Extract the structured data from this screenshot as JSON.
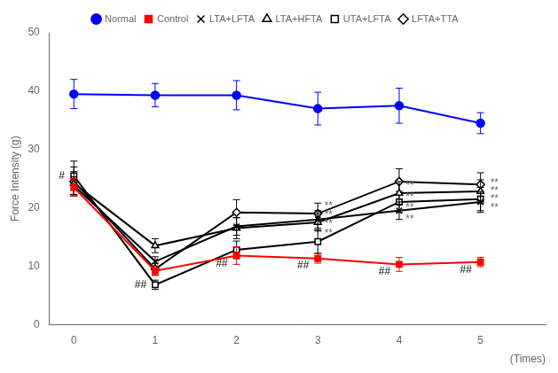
{
  "chart_data": {
    "type": "line",
    "ylabel": "Force Intensity (g)",
    "xlabel": "(Times)",
    "x": [
      0,
      1,
      2,
      3,
      4,
      5
    ],
    "xlim": [
      -0.3,
      5.8
    ],
    "xticks": [
      0,
      1,
      2,
      3,
      4,
      5
    ],
    "ylim": [
      0,
      50
    ],
    "yticks": [
      0,
      10,
      20,
      30,
      40,
      50
    ],
    "grid": false,
    "legend": "top",
    "series": [
      {
        "name": "Normal",
        "color": "#0000ff",
        "marker": "circle",
        "line_style": "solid",
        "values": [
          39.5,
          39.3,
          39.3,
          37.0,
          37.5,
          34.5
        ],
        "errors": [
          2.5,
          2.0,
          2.5,
          2.8,
          3.0,
          1.8
        ]
      },
      {
        "name": "Control",
        "color": "#ff0000",
        "marker": "square",
        "line_style": "solid",
        "values": [
          23.5,
          9.2,
          11.8,
          11.3,
          10.3,
          10.7
        ],
        "errors": [
          1.5,
          0.8,
          1.5,
          0.8,
          1.2,
          0.8
        ]
      },
      {
        "name": "LTA+LFTA",
        "color": "#000000",
        "marker": "cross",
        "line_style": "solid",
        "values": [
          23.8,
          10.8,
          16.8,
          18.0,
          19.5,
          21.0
        ],
        "errors": [
          1.5,
          0.8,
          1.5,
          1.5,
          1.5,
          1.8
        ]
      },
      {
        "name": "LTA+HFTA",
        "color": "#000000",
        "marker": "triangle-open",
        "line_style": "solid",
        "values": [
          24.2,
          13.5,
          16.5,
          17.5,
          22.5,
          22.8
        ],
        "errors": [
          2.0,
          1.2,
          1.8,
          1.5,
          2.0,
          2.0
        ]
      },
      {
        "name": "UTA+LFTA",
        "color": "#000000",
        "marker": "square-open",
        "line_style": "solid",
        "values": [
          25.5,
          6.8,
          12.8,
          14.2,
          21.0,
          21.5
        ],
        "errors": [
          2.5,
          0.8,
          1.5,
          2.0,
          1.8,
          2.0
        ]
      },
      {
        "name": "LFTA+TTA",
        "color": "#000000",
        "marker": "diamond-open",
        "line_style": "solid",
        "values": [
          24.5,
          9.5,
          19.2,
          19.0,
          24.5,
          24.0
        ],
        "errors": [
          2.5,
          1.0,
          2.2,
          1.8,
          2.2,
          2.0
        ]
      }
    ],
    "annotations": [
      {
        "text": "#",
        "x": -0.15,
        "y": 24.5,
        "position": "above",
        "color": "black"
      },
      {
        "text": "##",
        "x": 0.82,
        "y": 5.8,
        "position": "above",
        "color": "black"
      },
      {
        "text": "##",
        "x": 1.82,
        "y": 9.5,
        "position": "above",
        "color": "black"
      },
      {
        "text": "##",
        "x": 2.82,
        "y": 9.2,
        "position": "above",
        "color": "black"
      },
      {
        "text": "##",
        "x": 3.82,
        "y": 8.2,
        "position": "above",
        "color": "black"
      },
      {
        "text": "##",
        "x": 4.82,
        "y": 8.5,
        "position": "above",
        "color": "black"
      },
      {
        "text": "**",
        "x": 3.08,
        "y": 15.5,
        "position": "right",
        "color": "dimgray"
      },
      {
        "text": "**",
        "x": 3.08,
        "y": 17.3,
        "position": "right",
        "color": "dimgray"
      },
      {
        "text": "**",
        "x": 3.08,
        "y": 18.7,
        "position": "right",
        "color": "dimgray"
      },
      {
        "text": "**",
        "x": 3.08,
        "y": 20.3,
        "position": "right",
        "color": "dimgray"
      },
      {
        "text": "**",
        "x": 4.08,
        "y": 18.0,
        "position": "right",
        "color": "dimgray"
      },
      {
        "text": "**",
        "x": 4.08,
        "y": 20.0,
        "position": "right",
        "color": "dimgray"
      },
      {
        "text": "**",
        "x": 4.08,
        "y": 21.8,
        "position": "right",
        "color": "dimgray"
      },
      {
        "text": "**",
        "x": 4.08,
        "y": 23.8,
        "position": "right",
        "color": "dimgray"
      },
      {
        "text": "**",
        "x": 5.12,
        "y": 20.0,
        "position": "right",
        "color": "dimgray"
      },
      {
        "text": "**",
        "x": 5.12,
        "y": 21.5,
        "position": "right",
        "color": "dimgray"
      },
      {
        "text": "**",
        "x": 5.12,
        "y": 22.8,
        "position": "right",
        "color": "dimgray"
      },
      {
        "text": "**",
        "x": 5.12,
        "y": 24.2,
        "position": "right",
        "color": "dimgray"
      }
    ]
  }
}
